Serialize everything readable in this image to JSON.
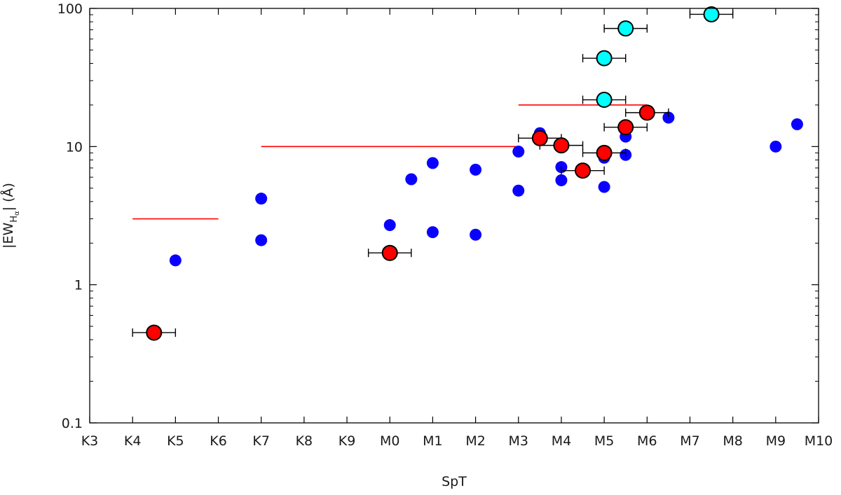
{
  "chart_data": {
    "type": "scatter",
    "xlabel": "SpT",
    "ylabel_parts": {
      "prefix": "|EW",
      "sub": "H",
      "subsub": "α",
      "suffix": "| (Å)"
    },
    "x_categories": [
      "K3",
      "K4",
      "K5",
      "K6",
      "K7",
      "K8",
      "K9",
      "M0",
      "M1",
      "M2",
      "M3",
      "M4",
      "M5",
      "M6",
      "M7",
      "M8",
      "M9",
      "M10"
    ],
    "xlim": [
      0,
      17
    ],
    "ylim": [
      0.1,
      100
    ],
    "yscale": "log",
    "y_ticks": [
      0.1,
      1,
      10,
      100
    ],
    "y_tick_labels": [
      "0.1",
      "1",
      "10",
      "100"
    ],
    "grid": false,
    "colors": {
      "blue": "#0a00ff",
      "red": "#ff0000",
      "cyan": "#00ffff",
      "outline": "#000000",
      "threshold": "#ff0000"
    },
    "threshold_lines": [
      {
        "x_start": 1,
        "x_end": 3,
        "y": 3
      },
      {
        "x_start": 4,
        "x_end": 10,
        "y": 10
      },
      {
        "x_start": 10,
        "x_end": 13,
        "y": 20
      }
    ],
    "series": [
      {
        "marker": "blue-dot",
        "points": [
          {
            "x": 2,
            "y": 1.5
          },
          {
            "x": 4,
            "y": 4.2
          },
          {
            "x": 4,
            "y": 2.1
          },
          {
            "x": 7,
            "y": 2.7
          },
          {
            "x": 7.5,
            "y": 5.8
          },
          {
            "x": 8,
            "y": 7.6
          },
          {
            "x": 8,
            "y": 2.4
          },
          {
            "x": 9,
            "y": 6.8
          },
          {
            "x": 9,
            "y": 2.3
          },
          {
            "x": 10,
            "y": 9.2
          },
          {
            "x": 10,
            "y": 4.8
          },
          {
            "x": 10.5,
            "y": 12.5
          },
          {
            "x": 11,
            "y": 7.1
          },
          {
            "x": 11,
            "y": 5.7
          },
          {
            "x": 12,
            "y": 8.3
          },
          {
            "x": 12,
            "y": 5.1
          },
          {
            "x": 12.5,
            "y": 11.8
          },
          {
            "x": 12.5,
            "y": 8.7
          },
          {
            "x": 13.5,
            "y": 16.2
          },
          {
            "x": 16,
            "y": 10.0
          },
          {
            "x": 16.5,
            "y": 14.5
          }
        ]
      },
      {
        "marker": "red-circle",
        "points": [
          {
            "x": 1.5,
            "y": 0.45,
            "xerr": 0.5,
            "ylow": 0.4,
            "yhigh": 0.5
          },
          {
            "x": 7,
            "y": 1.7,
            "xerr": 0.5
          },
          {
            "x": 10.5,
            "y": 11.5,
            "xerr": 0.5
          },
          {
            "x": 11,
            "y": 10.2,
            "xerr": 0.5
          },
          {
            "x": 11.5,
            "y": 6.7,
            "xerr": 0.5
          },
          {
            "x": 12,
            "y": 9.0,
            "xerr": 0.5
          },
          {
            "x": 12.5,
            "y": 13.8,
            "xerr": 0.5
          },
          {
            "x": 13,
            "y": 17.6,
            "xerr": 0.5
          }
        ]
      },
      {
        "marker": "cyan-circle",
        "points": [
          {
            "x": 12,
            "y": 21.8,
            "xerr": 0.5
          },
          {
            "x": 12,
            "y": 43.6,
            "xerr": 0.5
          },
          {
            "x": 12.5,
            "y": 71.6,
            "xerr": 0.5
          },
          {
            "x": 14.5,
            "y": 90.6,
            "xerr": 0.5
          }
        ]
      }
    ]
  }
}
